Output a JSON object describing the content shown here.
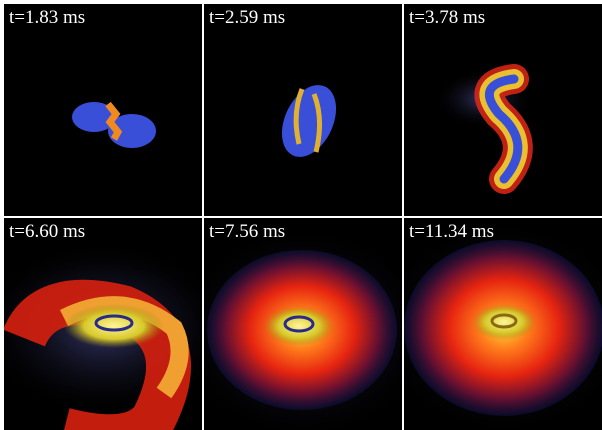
{
  "panels": [
    {
      "label": "t=1.83 ms"
    },
    {
      "label": "t=2.59 ms"
    },
    {
      "label": "t=3.78 ms"
    },
    {
      "label": "t=6.60 ms"
    },
    {
      "label": "t=7.56 ms"
    },
    {
      "label": "t=11.34 ms"
    }
  ]
}
